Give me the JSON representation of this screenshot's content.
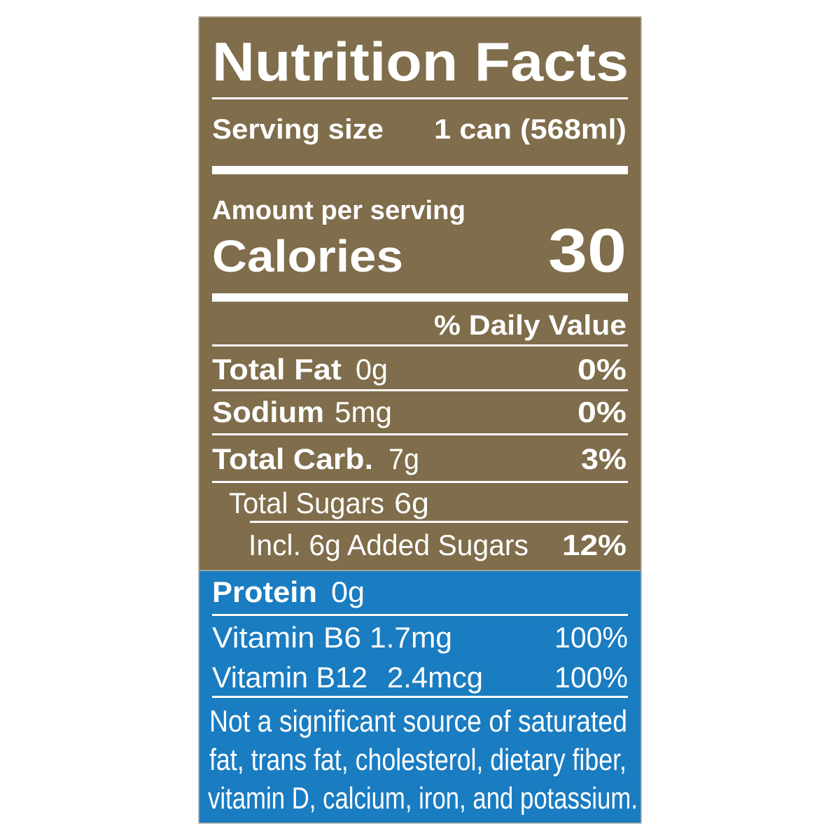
{
  "title": "Nutrition Facts",
  "serving": {
    "label": "Serving size",
    "value": "1 can (568ml)"
  },
  "amount_per_serving": "Amount per serving",
  "calories": {
    "label": "Calories",
    "value": 30
  },
  "daily_value_header": "% Daily Value",
  "nutrients": [
    {
      "name": "Total Fat",
      "amount": "0g",
      "dv": "0%"
    },
    {
      "name": "Sodium",
      "amount": "5mg",
      "dv": "0%"
    },
    {
      "name": "Total Carb.",
      "amount": "7g",
      "dv": "3%"
    },
    {
      "name": "Total Sugars",
      "amount": "6g"
    },
    {
      "name": "Incl. 6g Added Sugars",
      "dv": "12%"
    },
    {
      "name": "Protein",
      "amount": "0g"
    },
    {
      "name": "Vitamin B6",
      "amount": "1.7mg",
      "dv": "100%"
    },
    {
      "name": "Vitamin B12",
      "amount": "2.4mcg",
      "dv": "100%"
    }
  ],
  "footnote": [
    "Not a significant source of saturated",
    "fat, trans fat, cholesterol, dietary fiber,",
    "vitamin D, calcium, iron, and potassium."
  ]
}
